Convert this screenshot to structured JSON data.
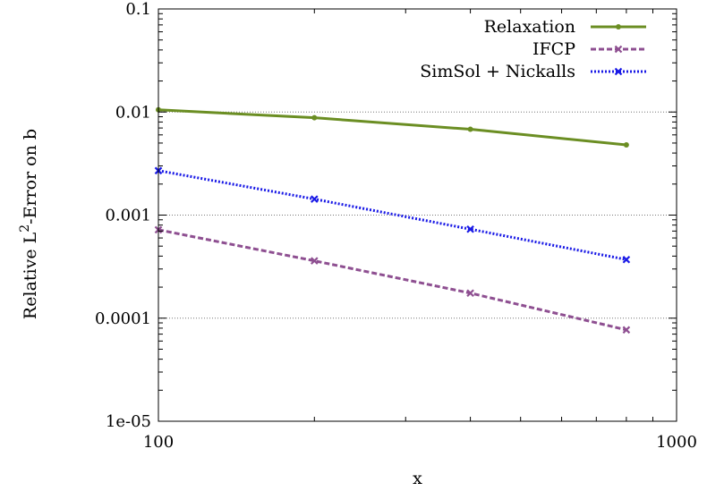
{
  "chart_data": {
    "type": "line",
    "xscale": "log",
    "yscale": "log",
    "xlim": [
      100,
      1000
    ],
    "ylim": [
      1e-05,
      0.1
    ],
    "xlabel": "x",
    "ylabel": "Relative L",
    "ylabel_sup": "2",
    "ylabel_suffix": "-Error on b",
    "xticks": [
      {
        "value": 100,
        "label": "100"
      },
      {
        "value": 1000,
        "label": "1000"
      }
    ],
    "yticks": [
      {
        "value": 0.1,
        "label": "0.1"
      },
      {
        "value": 0.01,
        "label": "0.01"
      },
      {
        "value": 0.001,
        "label": "0.001"
      },
      {
        "value": 0.0001,
        "label": "0.0001"
      },
      {
        "value": 1e-05,
        "label": "1e-05"
      }
    ],
    "grid": {
      "horizontal": true,
      "vertical": false
    },
    "legend_position": "top-right",
    "series": [
      {
        "name": "Relaxation",
        "color": "#6b8e23",
        "dash": "solid",
        "marker": "dot",
        "x": [
          100,
          200,
          400,
          800
        ],
        "y": [
          0.0105,
          0.0088,
          0.0068,
          0.0048
        ]
      },
      {
        "name": "IFCP",
        "color": "#8e4f91",
        "dash": "dashed",
        "marker": "x",
        "x": [
          100,
          200,
          400,
          800
        ],
        "y": [
          0.00072,
          0.00036,
          0.000175,
          7.7e-05
        ]
      },
      {
        "name": "SimSol + Nickalls",
        "color": "#1a1ae6",
        "dash": "dotted",
        "marker": "x",
        "x": [
          100,
          200,
          400,
          800
        ],
        "y": [
          0.0027,
          0.00143,
          0.00073,
          0.00037
        ]
      }
    ]
  }
}
